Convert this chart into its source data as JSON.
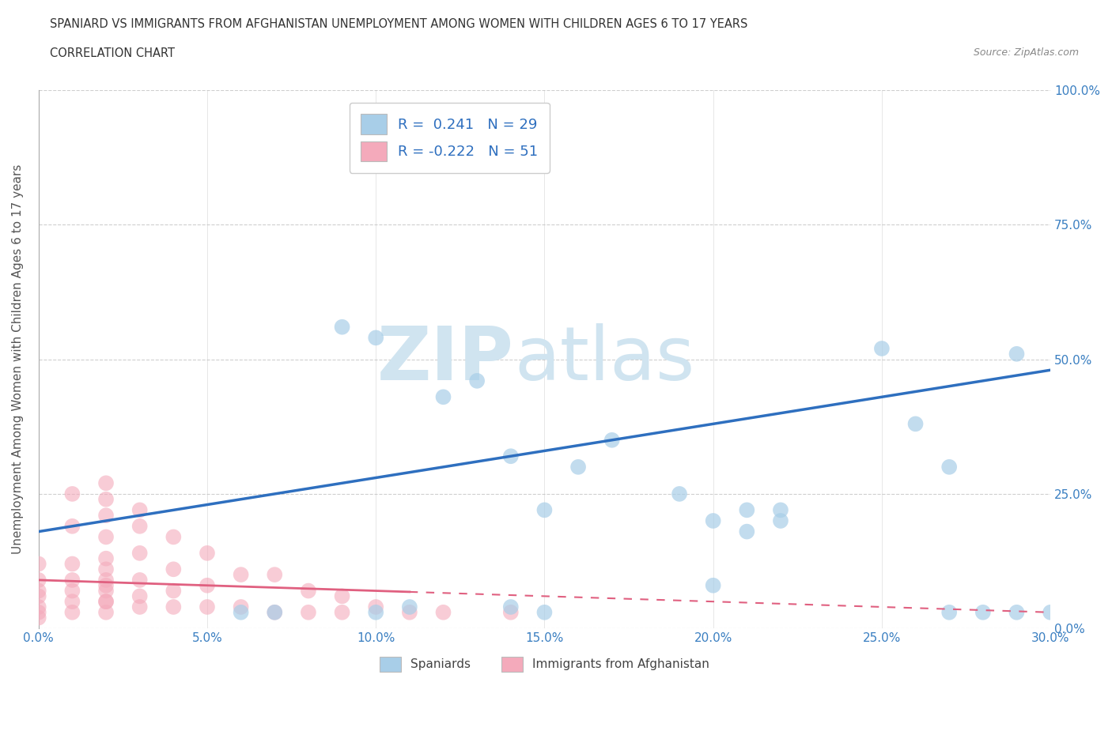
{
  "title_line1": "SPANIARD VS IMMIGRANTS FROM AFGHANISTAN UNEMPLOYMENT AMONG WOMEN WITH CHILDREN AGES 6 TO 17 YEARS",
  "title_line2": "CORRELATION CHART",
  "source_text": "Source: ZipAtlas.com",
  "ylabel": "Unemployment Among Women with Children Ages 6 to 17 years",
  "xlim": [
    0.0,
    0.3
  ],
  "ylim": [
    0.0,
    1.0
  ],
  "xticks": [
    0.0,
    0.05,
    0.1,
    0.15,
    0.2,
    0.25,
    0.3
  ],
  "xticklabels": [
    "0.0%",
    "5.0%",
    "10.0%",
    "15.0%",
    "20.0%",
    "25.0%",
    "30.0%"
  ],
  "yticks": [
    0.0,
    0.25,
    0.5,
    0.75,
    1.0
  ],
  "yticklabels": [
    "0.0%",
    "25.0%",
    "50.0%",
    "75.0%",
    "100.0%"
  ],
  "blue_R": 0.241,
  "blue_N": 29,
  "pink_R": -0.222,
  "pink_N": 51,
  "blue_color": "#A8CEE8",
  "pink_color": "#F4AABB",
  "blue_line_color": "#2E6FBF",
  "pink_line_color": "#E06080",
  "watermark_color": "#D0E4F0",
  "legend_label_blue": "Spaniards",
  "legend_label_pink": "Immigrants from Afghanistan",
  "blue_scatter_x": [
    0.06,
    0.07,
    0.09,
    0.1,
    0.1,
    0.11,
    0.12,
    0.13,
    0.14,
    0.15,
    0.16,
    0.17,
    0.19,
    0.2,
    0.21,
    0.22,
    0.14,
    0.15,
    0.2,
    0.21,
    0.22,
    0.25,
    0.26,
    0.27,
    0.27,
    0.28,
    0.29,
    0.29,
    0.3
  ],
  "blue_scatter_y": [
    0.03,
    0.03,
    0.56,
    0.54,
    0.03,
    0.04,
    0.43,
    0.46,
    0.32,
    0.22,
    0.3,
    0.35,
    0.25,
    0.2,
    0.22,
    0.2,
    0.04,
    0.03,
    0.08,
    0.18,
    0.22,
    0.52,
    0.38,
    0.3,
    0.03,
    0.03,
    0.51,
    0.03,
    0.03
  ],
  "pink_scatter_x": [
    0.0,
    0.0,
    0.0,
    0.0,
    0.0,
    0.0,
    0.0,
    0.01,
    0.01,
    0.01,
    0.01,
    0.01,
    0.01,
    0.01,
    0.02,
    0.02,
    0.02,
    0.02,
    0.02,
    0.02,
    0.02,
    0.02,
    0.02,
    0.02,
    0.02,
    0.02,
    0.03,
    0.03,
    0.03,
    0.03,
    0.03,
    0.03,
    0.04,
    0.04,
    0.04,
    0.04,
    0.05,
    0.05,
    0.05,
    0.06,
    0.06,
    0.07,
    0.07,
    0.08,
    0.08,
    0.09,
    0.09,
    0.1,
    0.11,
    0.12,
    0.14
  ],
  "pink_scatter_y": [
    0.02,
    0.03,
    0.04,
    0.06,
    0.07,
    0.09,
    0.12,
    0.03,
    0.05,
    0.07,
    0.09,
    0.12,
    0.19,
    0.25,
    0.03,
    0.05,
    0.07,
    0.09,
    0.11,
    0.13,
    0.17,
    0.21,
    0.24,
    0.27,
    0.05,
    0.08,
    0.04,
    0.06,
    0.09,
    0.14,
    0.19,
    0.22,
    0.04,
    0.07,
    0.11,
    0.17,
    0.04,
    0.08,
    0.14,
    0.04,
    0.1,
    0.03,
    0.1,
    0.03,
    0.07,
    0.03,
    0.06,
    0.04,
    0.03,
    0.03,
    0.03
  ],
  "blue_trend_x": [
    0.0,
    0.3
  ],
  "blue_trend_y": [
    0.18,
    0.48
  ],
  "pink_trend_x": [
    0.0,
    0.3
  ],
  "pink_trend_y": [
    0.09,
    0.03
  ],
  "background_color": "#FFFFFF",
  "grid_color": "#BBBBBB"
}
